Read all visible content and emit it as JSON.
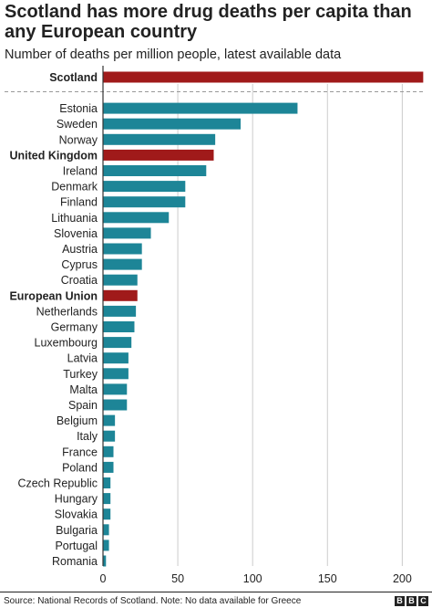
{
  "title": "Scotland has more drug deaths per capita than any European country",
  "subtitle": "Number of deaths per million people, latest available data",
  "source": "Source: National Records of Scotland. Note: No data available for Greece",
  "logo_letters": [
    "B",
    "B",
    "C"
  ],
  "colors": {
    "highlight": "#a01a1a",
    "default": "#1d8597",
    "grid": "#cccccc",
    "axis": "#333333",
    "text": "#222222"
  },
  "chart_data": {
    "type": "bar",
    "orientation": "horizontal",
    "title": "Scotland has more drug deaths per capita than any European country",
    "subtitle": "Number of deaths per million people, latest available data",
    "xlabel": "",
    "ylabel": "",
    "xlim": [
      0,
      215
    ],
    "xticks": [
      0,
      50,
      100,
      150,
      200
    ],
    "grid": true,
    "categories": [
      "Scotland",
      "Estonia",
      "Sweden",
      "Norway",
      "United Kingdom",
      "Ireland",
      "Denmark",
      "Finland",
      "Lithuania",
      "Slovenia",
      "Austria",
      "Cyprus",
      "Croatia",
      "European Union",
      "Netherlands",
      "Germany",
      "Luxembourg",
      "Latvia",
      "Turkey",
      "Malta",
      "Spain",
      "Belgium",
      "Italy",
      "France",
      "Poland",
      "Czech Republic",
      "Hungary",
      "Slovakia",
      "Bulgaria",
      "Portugal",
      "Romania"
    ],
    "values": [
      214,
      130,
      92,
      75,
      74,
      69,
      55,
      55,
      44,
      32,
      26,
      26,
      23,
      23,
      22,
      21,
      19,
      17,
      17,
      16,
      16,
      8,
      8,
      7,
      7,
      5,
      5,
      5,
      4,
      4,
      2
    ],
    "highlighted": [
      "Scotland",
      "United Kingdom",
      "European Union"
    ]
  }
}
